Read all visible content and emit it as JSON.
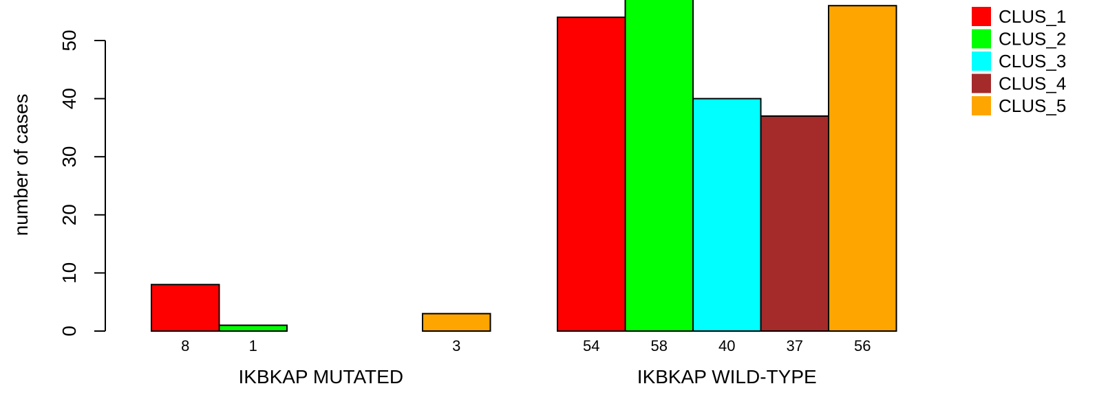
{
  "chart_data": {
    "type": "bar",
    "title": "",
    "ylabel": "number of cases",
    "ylim": [
      0,
      58
    ],
    "yticks": [
      0,
      10,
      20,
      30,
      40,
      50
    ],
    "grid": false,
    "legend_position": "top-right",
    "groups": [
      "IKBKAP MUTATED",
      "IKBKAP WILD-TYPE"
    ],
    "series": [
      {
        "name": "CLUS_1",
        "color": "#ff0000",
        "values": [
          8,
          54
        ]
      },
      {
        "name": "CLUS_2",
        "color": "#00ff00",
        "values": [
          1,
          58
        ]
      },
      {
        "name": "CLUS_3",
        "color": "#00ffff",
        "values": [
          0,
          40
        ]
      },
      {
        "name": "CLUS_4",
        "color": "#a52a2a",
        "values": [
          0,
          37
        ]
      },
      {
        "name": "CLUS_5",
        "color": "#ffa500",
        "values": [
          3,
          56
        ]
      }
    ],
    "bar_labels": [
      [
        "8",
        "1",
        "",
        "",
        "3"
      ],
      [
        "54",
        "58",
        "40",
        "37",
        "56"
      ]
    ]
  }
}
